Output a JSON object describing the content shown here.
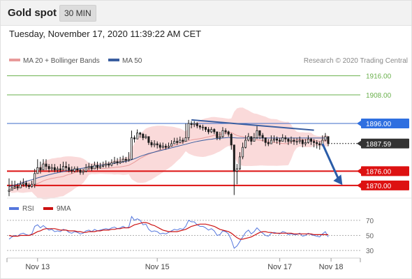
{
  "header": {
    "title": "Gold spot",
    "timeframe": "30 MIN"
  },
  "datetime": "Tuesday, November 17, 2020 11:39:22 AM CET",
  "legend": {
    "bb_label": "MA 20 + Bollinger Bands",
    "ma50_label": "MA 50",
    "credit": "Research © 2020 Trading Central",
    "rsi_label": "RSI",
    "rsi_ma_label": "9MA"
  },
  "colors": {
    "candle": "#1a1a1a",
    "bollinger_fill": "#f9d4d4",
    "ma20": "#e89a9a",
    "ma50": "#3a5ea0",
    "support": "#dd1111",
    "resistance_blue": "#3b6bc8",
    "target_green": "#6ab04c",
    "trendline": "#3a5ea0",
    "arrow": "#2a5ca8",
    "rsi": "#5577dd",
    "rsi_ma": "#cc1111"
  },
  "chart_data": [
    {
      "type": "candlestick",
      "title": "Gold spot",
      "x_ticks": [
        "Nov 13",
        "Nov 15",
        "Nov 17",
        "Nov 18"
      ],
      "ylim": [
        1865,
        1920
      ],
      "levels": [
        {
          "value": 1916.0,
          "label": "1916.00",
          "style": "green-line"
        },
        {
          "value": 1908.0,
          "label": "1908.00",
          "style": "green-line"
        },
        {
          "value": 1896.0,
          "label": "1896.00",
          "style": "blue-line"
        },
        {
          "value": 1887.59,
          "label": "1887.59",
          "style": "last-price"
        },
        {
          "value": 1876.0,
          "label": "1876.00",
          "style": "red-line"
        },
        {
          "value": 1870.0,
          "label": "1870.00",
          "style": "red-line"
        }
      ],
      "closes": [
        1868,
        1869,
        1869.5,
        1869,
        1870.5,
        1871,
        1870,
        1869.5,
        1870.5,
        1875,
        1877.5,
        1876.5,
        1879,
        1878,
        1877,
        1877.5,
        1876.5,
        1877,
        1876.5,
        1878,
        1877.5,
        1876.5,
        1876,
        1877,
        1876.5,
        1875.5,
        1876,
        1877.5,
        1878,
        1877,
        1878.5,
        1877.5,
        1878,
        1878.5,
        1879,
        1878.5,
        1879.5,
        1880,
        1879.5,
        1880,
        1881,
        1880.5,
        1881,
        1890,
        1889.5,
        1892,
        1891.5,
        1890,
        1890.5,
        1888,
        1887,
        1887.5,
        1887,
        1886,
        1886.5,
        1886,
        1886.5,
        1887.5,
        1888.5,
        1888,
        1889,
        1888.5,
        1890,
        1896,
        1895.5,
        1896,
        1895,
        1894.5,
        1894.5,
        1893.5,
        1892.5,
        1893.5,
        1892.5,
        1890,
        1890.5,
        1893,
        1892.5,
        1891.5,
        1887,
        1876,
        1877,
        1882,
        1886,
        1889,
        1890.5,
        1888.5,
        1890,
        1893,
        1891,
        1890,
        1888,
        1887.5,
        1889,
        1889.5,
        1889,
        1888.5,
        1890,
        1889.5,
        1888.5,
        1889,
        1888.5,
        1888.5,
        1889,
        1887.5,
        1888,
        1889.5,
        1888.5,
        1888,
        1887.5,
        1887,
        1889,
        1890.5,
        1887.59
      ],
      "highs": [
        1873,
        1872,
        1872,
        1871,
        1872,
        1873,
        1872,
        1871,
        1872,
        1877,
        1881,
        1880,
        1881,
        1881,
        1879,
        1879,
        1879,
        1878,
        1879,
        1880,
        1880,
        1879,
        1878,
        1878,
        1878,
        1877,
        1877,
        1879,
        1879.5,
        1879,
        1880,
        1880,
        1879.5,
        1880,
        1880.5,
        1880,
        1881,
        1882,
        1881.5,
        1882,
        1882.5,
        1882,
        1884,
        1893,
        1891,
        1893.5,
        1892.5,
        1892,
        1891.5,
        1890,
        1889,
        1889,
        1888.5,
        1888,
        1888,
        1887.5,
        1888,
        1889,
        1890,
        1890,
        1890.5,
        1890,
        1896,
        1897.5,
        1897,
        1897,
        1896.5,
        1895.5,
        1895.5,
        1894.5,
        1894.5,
        1894.5,
        1894,
        1892,
        1892.5,
        1894.5,
        1894,
        1893,
        1892,
        1879,
        1879,
        1884,
        1888,
        1891,
        1892,
        1890.5,
        1892,
        1895,
        1893,
        1892,
        1890,
        1889.5,
        1891,
        1891,
        1890.5,
        1890,
        1891.5,
        1891,
        1890,
        1890.5,
        1890,
        1890,
        1890.5,
        1889.5,
        1889.5,
        1891,
        1890,
        1889.5,
        1889,
        1888.5,
        1891,
        1892,
        1890.5
      ],
      "lows": [
        1865.5,
        1868,
        1868.5,
        1868,
        1869,
        1869.5,
        1869,
        1868.5,
        1869,
        1869,
        1875,
        1875,
        1876.5,
        1876.5,
        1875.5,
        1876,
        1875.5,
        1875.5,
        1875.5,
        1876.5,
        1876,
        1875.5,
        1875,
        1875.5,
        1875.5,
        1874.5,
        1874.5,
        1875.5,
        1876.5,
        1876,
        1877,
        1876.5,
        1877,
        1877.5,
        1877.5,
        1877.5,
        1878,
        1879,
        1878.5,
        1879,
        1879.5,
        1879.5,
        1880,
        1881,
        1888,
        1889.5,
        1890,
        1889,
        1889.5,
        1887,
        1886,
        1886,
        1885.5,
        1885,
        1885.5,
        1885,
        1885.5,
        1886.5,
        1887.5,
        1887,
        1888,
        1887.5,
        1888.5,
        1889,
        1894,
        1894.5,
        1894,
        1893.5,
        1893,
        1892.5,
        1891.5,
        1892,
        1891.5,
        1889,
        1889,
        1890,
        1891.5,
        1890.5,
        1885,
        1866,
        1870.5,
        1876.5,
        1881,
        1885.5,
        1888.5,
        1887,
        1888.5,
        1889.5,
        1889.5,
        1888.5,
        1886.5,
        1886.5,
        1887.5,
        1888,
        1887.5,
        1887,
        1888.5,
        1888,
        1887,
        1887.5,
        1887,
        1887,
        1887.5,
        1886,
        1886.5,
        1887.5,
        1887,
        1886,
        1885.5,
        1885,
        1886.5,
        1888.5,
        1886.5
      ],
      "ma50": [
        1869.5,
        1869.8,
        1870.2,
        1870.5,
        1870.9,
        1871.3,
        1871.7,
        1872.1,
        1872.4,
        1872.8,
        1873.2,
        1873.5,
        1873.9,
        1874.2,
        1874.5,
        1874.8,
        1875.1,
        1875.3,
        1875.6,
        1875.8,
        1876.1,
        1876.3,
        1876.5,
        1876.7,
        1876.9,
        1877.1,
        1877.3,
        1877.5,
        1877.7,
        1877.9,
        1878.1,
        1878.3,
        1878.5,
        1878.6,
        1878.8,
        1879,
        1879.2,
        1879.3,
        1879.5,
        1879.7,
        1879.9,
        1880.1,
        1880.4,
        1880.8,
        1881.2,
        1881.7,
        1882.2,
        1882.6,
        1883,
        1883.4,
        1883.7,
        1884,
        1884.3,
        1884.6,
        1884.9,
        1885.2,
        1885.5,
        1885.8,
        1886.1,
        1886.4,
        1886.7,
        1887,
        1887.3,
        1887.6,
        1887.9,
        1888.2,
        1888.5,
        1888.7,
        1888.9,
        1889.1,
        1889.3,
        1889.4,
        1889.6,
        1889.7,
        1889.8,
        1889.9,
        1890,
        1890.1,
        1890.1,
        1890,
        1889.9,
        1889.9,
        1889.9,
        1889.9,
        1889.9,
        1889.9,
        1889.9,
        1889.9,
        1889.9,
        1889.9,
        1889.9,
        1889.9,
        1889.9,
        1889.9,
        1889.9,
        1889.9,
        1889.9,
        1889.9,
        1889.9,
        1889.9,
        1889.9,
        1889.9,
        1889.9,
        1889.9,
        1889.9,
        1889.9,
        1889.9,
        1889.9,
        1889.9,
        1889.9,
        1889.9,
        1889.9,
        1889.9
      ],
      "trendline": [
        [
          64,
          1897.5
        ],
        [
          107,
          1893.2
        ]
      ],
      "forecast_arrow": [
        [
          110,
          1887.5
        ],
        [
          117,
          1870.2
        ]
      ]
    },
    {
      "type": "line",
      "title": "RSI",
      "y_ticks": [
        70,
        50,
        30
      ],
      "ylim": [
        20,
        80
      ],
      "series": [
        {
          "name": "RSI",
          "values": [
            45,
            48,
            50,
            49,
            52,
            53,
            51,
            50,
            52,
            62,
            64,
            60,
            63,
            60,
            57,
            58,
            55,
            56,
            55,
            58,
            57,
            54,
            53,
            55,
            54,
            52,
            53,
            56,
            57,
            55,
            58,
            56,
            57,
            58,
            59,
            58,
            60,
            61,
            59,
            60,
            62,
            60,
            61,
            75,
            70,
            72,
            70,
            64,
            65,
            58,
            55,
            56,
            55,
            52,
            53,
            52,
            54,
            56,
            58,
            57,
            59,
            58,
            62,
            70,
            68,
            68,
            64,
            62,
            62,
            60,
            57,
            59,
            56,
            50,
            51,
            56,
            55,
            52,
            44,
            33,
            36,
            42,
            48,
            54,
            57,
            52,
            55,
            60,
            56,
            53,
            50,
            49,
            53,
            54,
            53,
            52,
            55,
            54,
            51,
            52,
            51,
            51,
            53,
            49,
            50,
            53,
            51,
            50,
            49,
            48,
            52,
            55,
            48
          ]
        },
        {
          "name": "9MA",
          "values": [
            50,
            49,
            49,
            49,
            50,
            50,
            50,
            50,
            51,
            53,
            55,
            56,
            58,
            59,
            59,
            59,
            59,
            58,
            57,
            57,
            57,
            56,
            56,
            56,
            55,
            55,
            54,
            54,
            55,
            55,
            55,
            56,
            56,
            57,
            57,
            57,
            58,
            58,
            59,
            59,
            60,
            60,
            60,
            62,
            64,
            65,
            66,
            67,
            67,
            66,
            64,
            63,
            61,
            59,
            57,
            56,
            55,
            55,
            55,
            55,
            56,
            57,
            58,
            60,
            62,
            63,
            64,
            65,
            65,
            65,
            64,
            63,
            62,
            60,
            58,
            57,
            56,
            55,
            53,
            50,
            47,
            45,
            45,
            46,
            47,
            48,
            50,
            52,
            54,
            55,
            55,
            54,
            54,
            53,
            53,
            53,
            53,
            53,
            53,
            53,
            52,
            52,
            52,
            52,
            52,
            52,
            52,
            51,
            51,
            51,
            51,
            51,
            51
          ]
        }
      ]
    }
  ]
}
